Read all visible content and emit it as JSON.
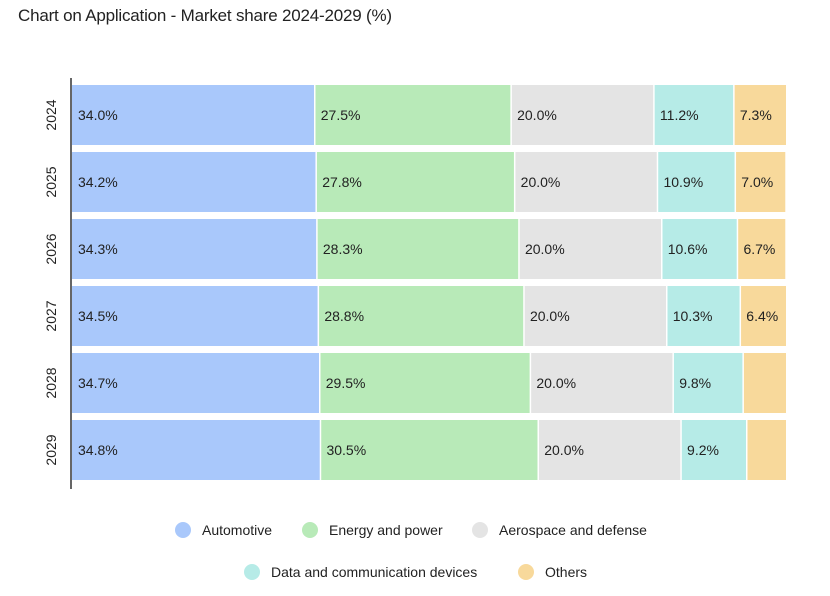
{
  "title": "Chart on Application - Market share 2024-2029 (%)",
  "chart_data": {
    "type": "bar",
    "orientation": "horizontal",
    "stacked": true,
    "title": "Chart on Application - Market share 2024-2029 (%)",
    "categories": [
      "2024",
      "2025",
      "2026",
      "2027",
      "2028",
      "2029"
    ],
    "xlim": [
      0,
      100
    ],
    "grid": false,
    "legend_position": "bottom",
    "series": [
      {
        "name": "Automotive",
        "color": "#a9c8fb",
        "values": [
          34.0,
          34.2,
          34.3,
          34.5,
          34.7,
          34.8
        ],
        "labels": [
          "34.0%",
          "34.2%",
          "34.3%",
          "34.5%",
          "34.7%",
          "34.8%"
        ]
      },
      {
        "name": "Energy and power",
        "color": "#b8eab8",
        "values": [
          27.5,
          27.8,
          28.3,
          28.8,
          29.5,
          30.5
        ],
        "labels": [
          "27.5%",
          "27.8%",
          "28.3%",
          "28.8%",
          "29.5%",
          "30.5%"
        ]
      },
      {
        "name": "Aerospace and defense",
        "color": "#e4e4e4",
        "values": [
          20.0,
          20.0,
          20.0,
          20.0,
          20.0,
          20.0
        ],
        "labels": [
          "20.0%",
          "20.0%",
          "20.0%",
          "20.0%",
          "20.0%",
          "20.0%"
        ]
      },
      {
        "name": "Data and communication devices",
        "color": "#b6ebe7",
        "values": [
          11.2,
          10.9,
          10.6,
          10.3,
          9.8,
          9.2
        ],
        "labels": [
          "11.2%",
          "10.9%",
          "10.6%",
          "10.3%",
          "9.8%",
          "9.2%"
        ]
      },
      {
        "name": "Others",
        "color": "#f8d99b",
        "values": [
          7.3,
          7.0,
          6.7,
          6.4,
          6.0,
          5.5
        ],
        "labels": [
          "7.3%",
          "7.0%",
          "6.7%",
          "6.4%",
          "",
          ""
        ]
      }
    ]
  }
}
